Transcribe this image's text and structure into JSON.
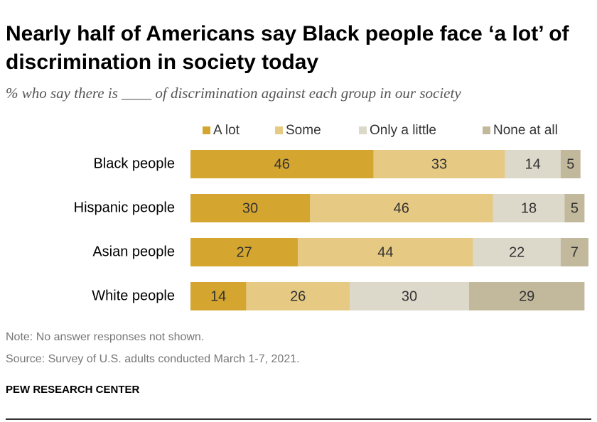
{
  "title": "Nearly half of Americans say Black people face ‘a lot’ of discrimination in society today",
  "subtitle": "% who say there is ____ of discrimination against each group in our society",
  "note": "Note: No answer responses not shown.",
  "source": "Survey of U.S. adults conducted March 1-7, 2021.",
  "source_prefix": "Source: ",
  "org": "PEW RESEARCH CENTER",
  "chart_data": {
    "type": "bar",
    "orientation": "horizontal",
    "stacked": true,
    "categories": [
      "Black people",
      "Hispanic people",
      "Asian people",
      "White people"
    ],
    "series": [
      {
        "name": "A lot",
        "color": "#d4a62f",
        "values": [
          46,
          30,
          27,
          14
        ]
      },
      {
        "name": "Some",
        "color": "#e6c982",
        "values": [
          33,
          46,
          44,
          26
        ]
      },
      {
        "name": "Only a little",
        "color": "#dcd8ca",
        "values": [
          14,
          18,
          22,
          30
        ]
      },
      {
        "name": "None at all",
        "color": "#c2b99c",
        "values": [
          5,
          5,
          7,
          29
        ]
      }
    ],
    "xlim": [
      0,
      100
    ],
    "legend_position": "top",
    "grid": false
  }
}
